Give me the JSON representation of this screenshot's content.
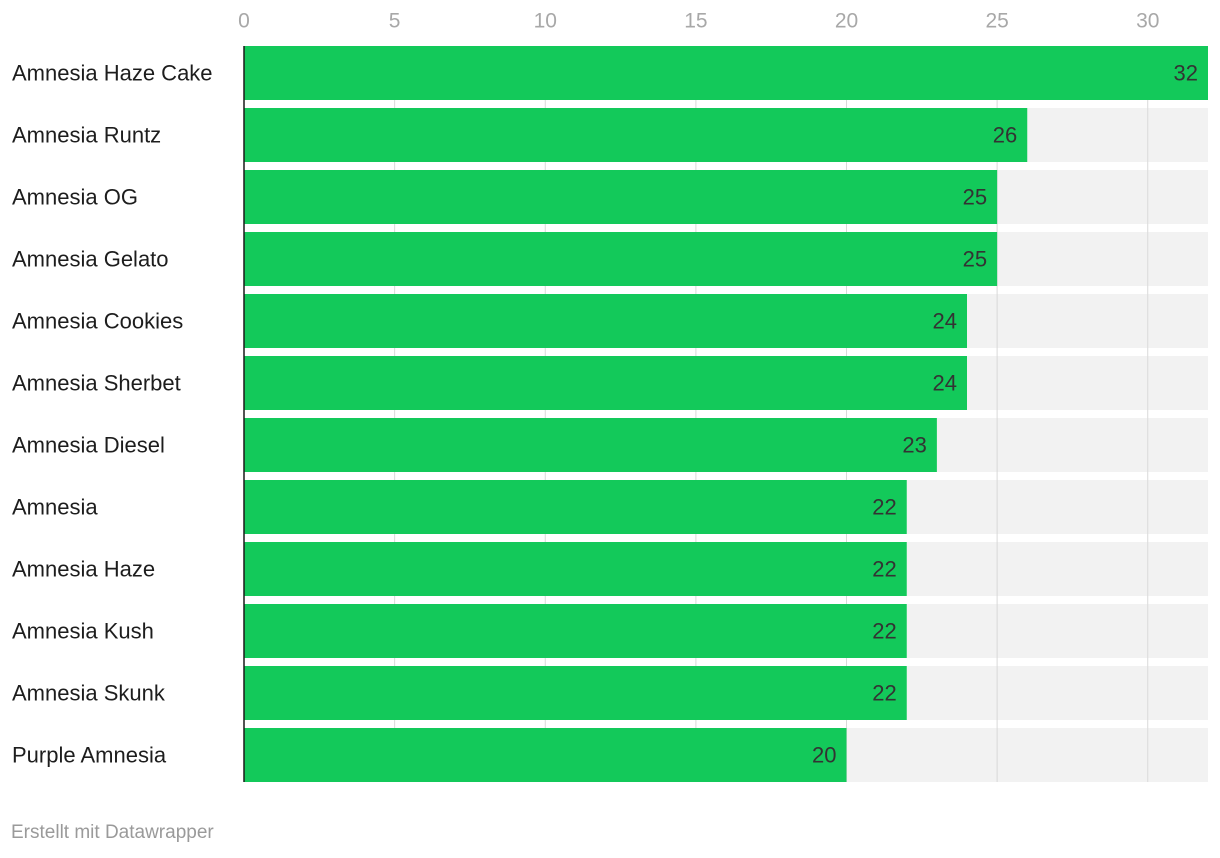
{
  "colors": {
    "bar": "#13c95a",
    "track": "#f2f2f2",
    "gridline": "#d9d9d9",
    "baseline": "#1a1a1a"
  },
  "chart_data": {
    "type": "bar",
    "orientation": "horizontal",
    "categories": [
      "Amnesia Haze Cake",
      "Amnesia Runtz",
      "Amnesia OG",
      "Amnesia Gelato",
      "Amnesia Cookies",
      "Amnesia Sherbet",
      "Amnesia Diesel",
      "Amnesia",
      "Amnesia Haze",
      "Amnesia Kush",
      "Amnesia Skunk",
      "Purple Amnesia"
    ],
    "values": [
      32,
      26,
      25,
      25,
      24,
      24,
      23,
      22,
      22,
      22,
      22,
      20
    ],
    "xlim": [
      0,
      32
    ],
    "xticks": [
      0,
      5,
      10,
      15,
      20,
      25,
      30
    ],
    "axis_position": "top",
    "grid": true,
    "data_labels": true
  },
  "footer": {
    "credit": "Erstellt mit Datawrapper"
  }
}
